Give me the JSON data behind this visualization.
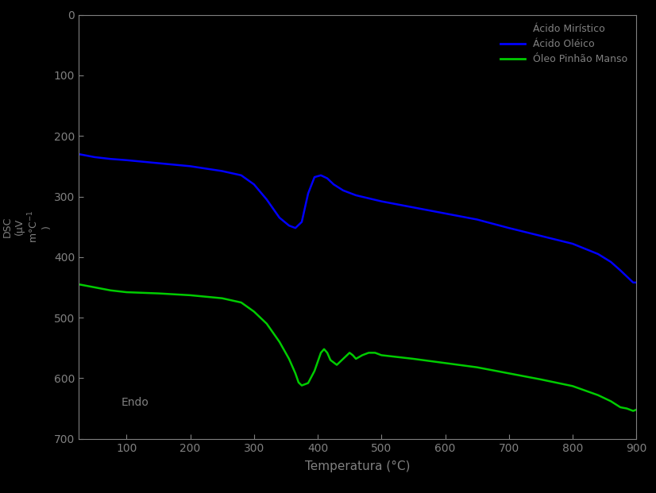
{
  "background_color": "#000000",
  "text_color": "#808080",
  "xlabel": "Temperatura (°C)",
  "xlim": [
    25,
    900
  ],
  "ylim": [
    -700,
    0
  ],
  "xticks": [
    100,
    200,
    300,
    400,
    500,
    600,
    700,
    800,
    900
  ],
  "yticks": [
    0,
    -100,
    -200,
    -300,
    -400,
    -500,
    -600,
    -700
  ],
  "ytick_labels": [
    "0",
    "100",
    "200",
    "300",
    "400",
    "500",
    "600",
    "700"
  ],
  "legend_entries": [
    {
      "label": "Ácido Mirístico",
      "color": "#808080",
      "linestyle": "none"
    },
    {
      "label": "Ácido Oléico",
      "color": "#0000ff",
      "linestyle": "-"
    },
    {
      "label": "Óleo Pinhão Manso",
      "color": "#00cc00",
      "linestyle": "-"
    }
  ],
  "endo_label": "Endo",
  "endo_x": 92,
  "endo_y": -645,
  "ylabel_lines": [
    "DSC",
    "(µV",
    "m°C",
    "-1",
    ")"
  ],
  "blue_curve": {
    "x": [
      25,
      50,
      75,
      100,
      150,
      200,
      250,
      280,
      300,
      320,
      340,
      355,
      365,
      375,
      385,
      395,
      405,
      415,
      425,
      440,
      460,
      480,
      500,
      550,
      600,
      650,
      700,
      750,
      800,
      840,
      860,
      875,
      885,
      895,
      900
    ],
    "y": [
      -230,
      -235,
      -238,
      -240,
      -245,
      -250,
      -258,
      -265,
      -280,
      -305,
      -335,
      -348,
      -352,
      -342,
      -295,
      -268,
      -265,
      -270,
      -280,
      -290,
      -298,
      -303,
      -308,
      -318,
      -328,
      -338,
      -352,
      -365,
      -378,
      -395,
      -408,
      -422,
      -432,
      -442,
      -442
    ]
  },
  "green_curve": {
    "x": [
      25,
      50,
      75,
      100,
      150,
      200,
      250,
      280,
      300,
      320,
      340,
      355,
      365,
      370,
      375,
      385,
      395,
      405,
      410,
      415,
      420,
      430,
      440,
      450,
      455,
      460,
      470,
      480,
      490,
      500,
      550,
      600,
      650,
      700,
      750,
      800,
      840,
      860,
      875,
      885,
      895,
      900
    ],
    "y": [
      -445,
      -450,
      -455,
      -458,
      -460,
      -463,
      -468,
      -475,
      -490,
      -510,
      -540,
      -568,
      -592,
      -607,
      -612,
      -608,
      -588,
      -558,
      -552,
      -558,
      -570,
      -578,
      -568,
      -558,
      -562,
      -568,
      -562,
      -558,
      -558,
      -562,
      -568,
      -575,
      -582,
      -592,
      -602,
      -613,
      -628,
      -638,
      -648,
      -650,
      -654,
      -652
    ]
  }
}
